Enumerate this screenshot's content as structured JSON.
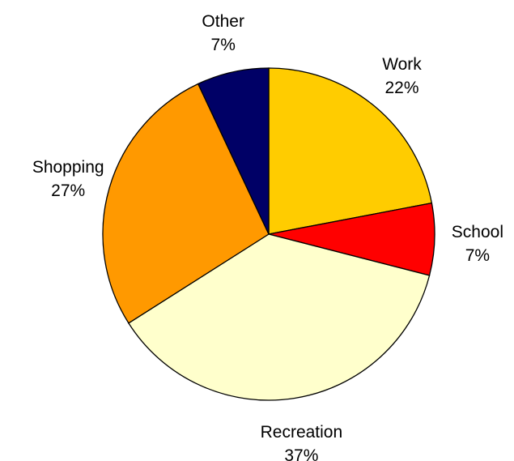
{
  "chart_data": {
    "type": "pie",
    "slices": [
      {
        "label": "Work",
        "value": 22,
        "value_label": "22%",
        "color": "#FFCC00"
      },
      {
        "label": "School",
        "value": 7,
        "value_label": "7%",
        "color": "#FF0000"
      },
      {
        "label": "Recreation",
        "value": 37,
        "value_label": "37%",
        "color": "#FFFFCC"
      },
      {
        "label": "Shopping",
        "value": 27,
        "value_label": "27%",
        "color": "#FF9900"
      },
      {
        "label": "Other",
        "value": 7,
        "value_label": "7%",
        "color": "#000066"
      }
    ],
    "start_angle_deg": 0,
    "direction": "clockwise",
    "outline_color": "#000000"
  }
}
